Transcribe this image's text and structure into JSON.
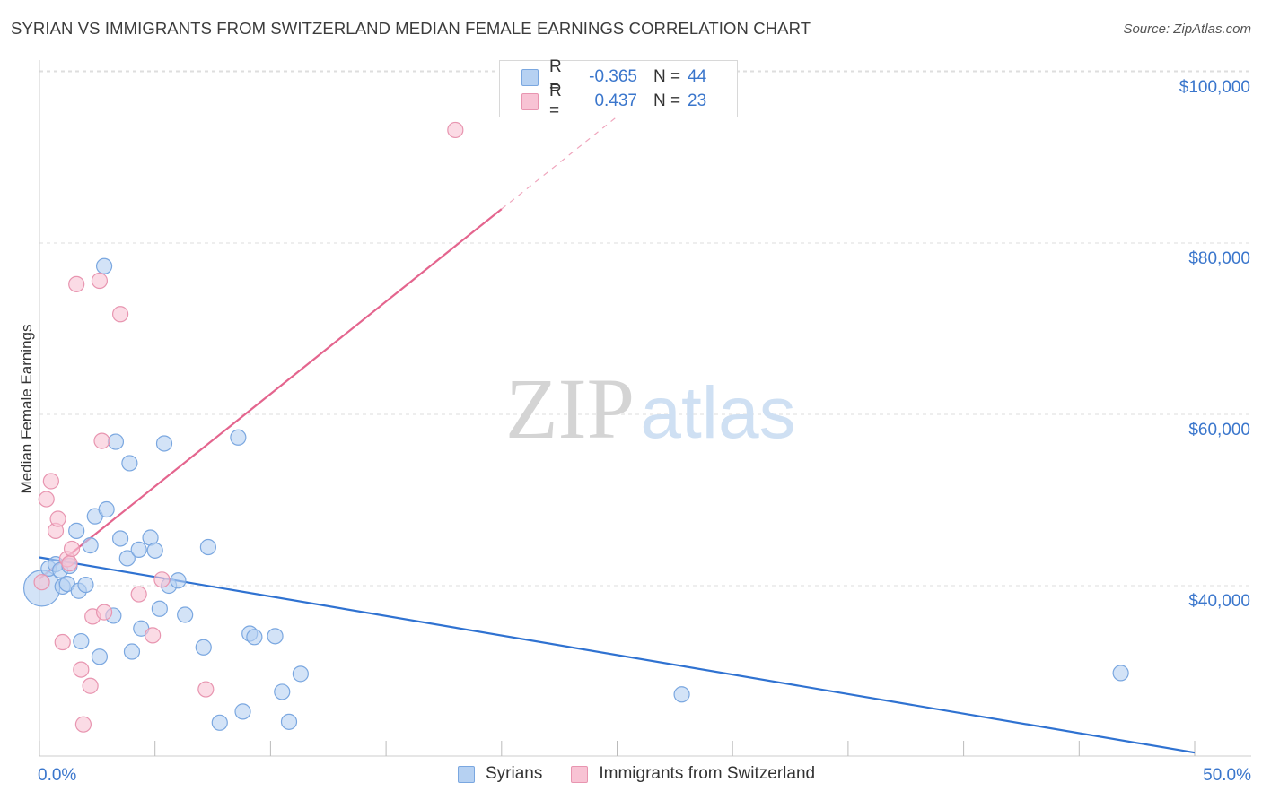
{
  "header": {
    "title": "SYRIAN VS IMMIGRANTS FROM SWITZERLAND MEDIAN FEMALE EARNINGS CORRELATION CHART",
    "source": "Source: ZipAtlas.com"
  },
  "legend": {
    "rows": [
      {
        "r_label": "R =",
        "r_value": "-0.365",
        "n_label": "N =",
        "n_value": "44"
      },
      {
        "r_label": "R =",
        "r_value": "0.437",
        "n_label": "N =",
        "n_value": "23"
      }
    ]
  },
  "watermark": {
    "zip": "ZIP",
    "atlas": "atlas"
  },
  "colors": {
    "syrians_fill": "#b6d1f2",
    "syrians_stroke": "#7aa7e0",
    "syrians_line": "#2f72d1",
    "swiss_fill": "#f8c3d4",
    "swiss_stroke": "#e895b0",
    "swiss_line": "#e4658e",
    "tick_label": "#3a76cc",
    "grid": "#dedede"
  },
  "chart_data": {
    "type": "scatter",
    "title": "SYRIAN VS IMMIGRANTS FROM SWITZERLAND MEDIAN FEMALE EARNINGS CORRELATION CHART",
    "xlabel": "",
    "ylabel": "Median Female Earnings",
    "xlim": [
      0,
      50
    ],
    "ylim": [
      20000,
      102000
    ],
    "x_tick_labels": [
      "0.0%",
      "50.0%"
    ],
    "y_ticks": [
      40000,
      60000,
      80000,
      100000
    ],
    "y_tick_labels": [
      "$40,000",
      "$60,000",
      "$80,000",
      "$100,000"
    ],
    "series": [
      {
        "name": "Syrians",
        "r": -0.365,
        "n": 44,
        "trend": {
          "x": [
            0,
            50
          ],
          "y": [
            43300,
            20500
          ],
          "dashed_from": null
        },
        "points": [
          {
            "x": 0.1,
            "y": 39700,
            "big": true
          },
          {
            "x": 0.4,
            "y": 42000
          },
          {
            "x": 0.7,
            "y": 42500
          },
          {
            "x": 0.9,
            "y": 41800
          },
          {
            "x": 1.0,
            "y": 39900
          },
          {
            "x": 1.2,
            "y": 40200
          },
          {
            "x": 1.3,
            "y": 42300
          },
          {
            "x": 1.6,
            "y": 46400
          },
          {
            "x": 1.7,
            "y": 39400
          },
          {
            "x": 1.8,
            "y": 33500
          },
          {
            "x": 2.0,
            "y": 40100
          },
          {
            "x": 2.2,
            "y": 44700
          },
          {
            "x": 2.4,
            "y": 48100
          },
          {
            "x": 2.6,
            "y": 31700
          },
          {
            "x": 2.8,
            "y": 77300
          },
          {
            "x": 2.9,
            "y": 48900
          },
          {
            "x": 3.2,
            "y": 36500
          },
          {
            "x": 3.3,
            "y": 56800
          },
          {
            "x": 3.5,
            "y": 45500
          },
          {
            "x": 3.8,
            "y": 43200
          },
          {
            "x": 3.9,
            "y": 54300
          },
          {
            "x": 4.0,
            "y": 32300
          },
          {
            "x": 4.3,
            "y": 44200
          },
          {
            "x": 4.4,
            "y": 35000
          },
          {
            "x": 4.8,
            "y": 45600
          },
          {
            "x": 5.0,
            "y": 44100
          },
          {
            "x": 5.2,
            "y": 37300
          },
          {
            "x": 5.4,
            "y": 56600
          },
          {
            "x": 5.6,
            "y": 40000
          },
          {
            "x": 6.0,
            "y": 40600
          },
          {
            "x": 6.3,
            "y": 36600
          },
          {
            "x": 7.1,
            "y": 32800
          },
          {
            "x": 7.3,
            "y": 44500
          },
          {
            "x": 7.8,
            "y": 24000
          },
          {
            "x": 8.6,
            "y": 57300
          },
          {
            "x": 8.8,
            "y": 25300
          },
          {
            "x": 9.1,
            "y": 34400
          },
          {
            "x": 9.3,
            "y": 34000
          },
          {
            "x": 10.2,
            "y": 34100
          },
          {
            "x": 10.5,
            "y": 27600
          },
          {
            "x": 10.8,
            "y": 24100
          },
          {
            "x": 11.3,
            "y": 29700
          },
          {
            "x": 27.8,
            "y": 27300
          },
          {
            "x": 46.8,
            "y": 29800
          }
        ]
      },
      {
        "name": "Immigrants from Switzerland",
        "r": 0.437,
        "n": 23,
        "trend": {
          "x": [
            0,
            26.5
          ],
          "y": [
            40800,
            98000
          ],
          "dashed_from": 20
        },
        "points": [
          {
            "x": 0.1,
            "y": 40400
          },
          {
            "x": 0.3,
            "y": 50100
          },
          {
            "x": 0.5,
            "y": 52200
          },
          {
            "x": 0.7,
            "y": 46400
          },
          {
            "x": 0.8,
            "y": 47800
          },
          {
            "x": 1.0,
            "y": 33400
          },
          {
            "x": 1.2,
            "y": 43100
          },
          {
            "x": 1.3,
            "y": 42600
          },
          {
            "x": 1.4,
            "y": 44300
          },
          {
            "x": 1.6,
            "y": 75200
          },
          {
            "x": 1.8,
            "y": 30200
          },
          {
            "x": 1.9,
            "y": 23800
          },
          {
            "x": 2.2,
            "y": 28300
          },
          {
            "x": 2.3,
            "y": 36400
          },
          {
            "x": 2.6,
            "y": 75600
          },
          {
            "x": 2.7,
            "y": 56900
          },
          {
            "x": 2.8,
            "y": 36900
          },
          {
            "x": 3.5,
            "y": 71700
          },
          {
            "x": 4.3,
            "y": 39000
          },
          {
            "x": 4.9,
            "y": 34200
          },
          {
            "x": 5.3,
            "y": 40700
          },
          {
            "x": 7.2,
            "y": 27900
          },
          {
            "x": 18.0,
            "y": 93200
          }
        ]
      }
    ]
  },
  "bottom_legend": {
    "items": [
      {
        "label": "Syrians"
      },
      {
        "label": "Immigrants from Switzerland"
      }
    ]
  }
}
